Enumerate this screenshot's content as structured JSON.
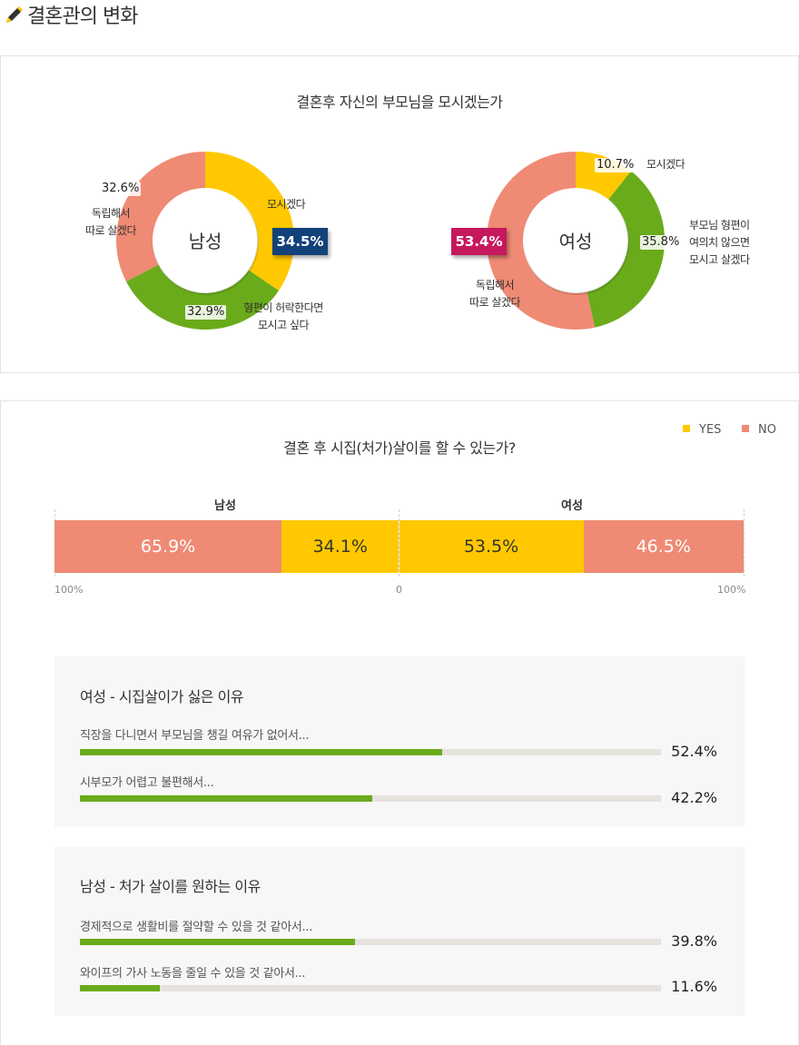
{
  "page": {
    "title": "결혼관의 변화"
  },
  "icons": {
    "title_icon": "pencil-icon"
  },
  "colors": {
    "yellow": "#ffc800",
    "green": "#6aab1b",
    "salmon": "#ef8a75",
    "navy": "#13427a",
    "magenta": "#c5185d"
  },
  "chart_data": [
    {
      "type": "pie",
      "title": "결혼후 자신의 부모님을 모시겠는가",
      "groups": [
        {
          "name": "남성",
          "slices": [
            {
              "label": "모시겠다",
              "value": 34.5,
              "color": "#ffc800"
            },
            {
              "label": "형편이 허락한다면 모시고 싶다",
              "value": 32.9,
              "color": "#6aab1b"
            },
            {
              "label": "독립해서 따로 살겠다",
              "value": 32.6,
              "color": "#ef8a75"
            }
          ]
        },
        {
          "name": "여성",
          "slices": [
            {
              "label": "모시겠다",
              "value": 10.7,
              "color": "#ffc800"
            },
            {
              "label": "부모님 형편이 여의치 않으면 모시고 살겠다",
              "value": 35.8,
              "color": "#6aab1b"
            },
            {
              "label": "독립해서 따로 살겠다",
              "value": 53.4,
              "color": "#ef8a75"
            }
          ]
        }
      ]
    },
    {
      "type": "bar",
      "orientation": "horizontal-diverging",
      "title": "결혼 후 시집(처가)살이를 할 수 있는가?",
      "legend": [
        {
          "name": "YES",
          "color": "#ffc800"
        },
        {
          "name": "NO",
          "color": "#ef8a75"
        }
      ],
      "legend_position": "top-right",
      "categories": [
        "남성",
        "여성"
      ],
      "series": [
        {
          "name": "YES",
          "values": [
            34.1,
            53.5
          ]
        },
        {
          "name": "NO",
          "values": [
            65.9,
            46.5
          ]
        }
      ],
      "axis_ticks": [
        "100%",
        "0",
        "100%"
      ]
    },
    {
      "type": "bar",
      "orientation": "horizontal",
      "title": "여성 - 시집살이가 싫은 이유",
      "categories": [
        "직장을 다니면서 부모님을 챙길 여유가 없어서...",
        "시부모가 어렵고 불편해서..."
      ],
      "values": [
        52.4,
        42.2
      ],
      "xlim": [
        0,
        100
      ]
    },
    {
      "type": "bar",
      "orientation": "horizontal",
      "title": "남성 - 처가 살이를 원하는 이유",
      "categories": [
        "경제적으로 생활비를 절약할 수 있을 것 같아서...",
        "와이프의 가사 노동을 줄일 수 있을 것 같아서..."
      ],
      "values": [
        39.8,
        11.6
      ],
      "xlim": [
        0,
        100
      ]
    }
  ],
  "donut_labels": {
    "male": {
      "center": "남성",
      "s1_label": "모시겠다",
      "s1_pct": "34.5%",
      "s2_label_1": "형편이 허락한다면",
      "s2_label_2": "모시고 싶다",
      "s2_pct": "32.9%",
      "s3_label_1": "독립해서",
      "s3_label_2": "따로 살겠다",
      "s3_pct": "32.6%"
    },
    "female": {
      "center": "여성",
      "s1_label": "모시겠다",
      "s1_pct": "10.7%",
      "s2_label_1": "부모님 형편이",
      "s2_label_2": "여의치 않으면",
      "s2_label_3": "모시고 살겠다",
      "s2_pct": "35.8%",
      "s3_label_1": "독립해서",
      "s3_label_2": "따로 살겠다",
      "s3_pct": "53.4%"
    }
  },
  "stacked_labels": {
    "male_no": "65.9%",
    "male_yes": "34.1%",
    "female_yes": "53.5%",
    "female_no": "46.5%",
    "legend_yes": "YES",
    "legend_no": "NO",
    "tick_left": "100%",
    "tick_mid": "0",
    "tick_right": "100%"
  },
  "reasons_labels": {
    "female": [
      {
        "value": "52.4%"
      },
      {
        "value": "42.2%"
      }
    ],
    "male": [
      {
        "value": "39.8%"
      },
      {
        "value": "11.6%"
      }
    ]
  }
}
